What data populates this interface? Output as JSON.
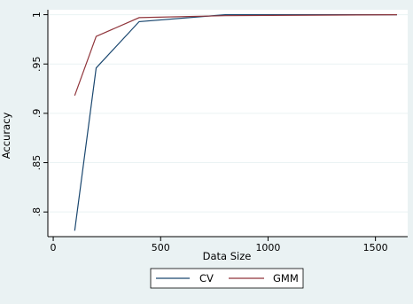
{
  "chart_data": {
    "type": "line",
    "title": "",
    "xlabel": "Data Size",
    "ylabel": "Accuracy",
    "xlim": [
      -25,
      1650
    ],
    "ylim": [
      0.775,
      1.005
    ],
    "xticks": [
      0,
      500,
      1000,
      1500
    ],
    "xtick_labels": [
      "0",
      "500",
      "1000",
      "1500"
    ],
    "yticks": [
      0.8,
      0.85,
      0.9,
      0.95,
      1.0
    ],
    "ytick_labels": [
      ".8",
      ".85",
      ".9",
      ".95",
      "1"
    ],
    "grid": "horizontal",
    "legend_position": "bottom",
    "series": [
      {
        "name": "CV",
        "color": "#1a476f",
        "x": [
          100,
          200,
          400,
          800,
          1600
        ],
        "y": [
          0.781,
          0.946,
          0.993,
          1.0,
          1.0
        ]
      },
      {
        "name": "GMM",
        "color": "#90353b",
        "x": [
          100,
          200,
          400,
          800,
          1600
        ],
        "y": [
          0.918,
          0.978,
          0.997,
          0.999,
          1.0
        ]
      }
    ]
  }
}
